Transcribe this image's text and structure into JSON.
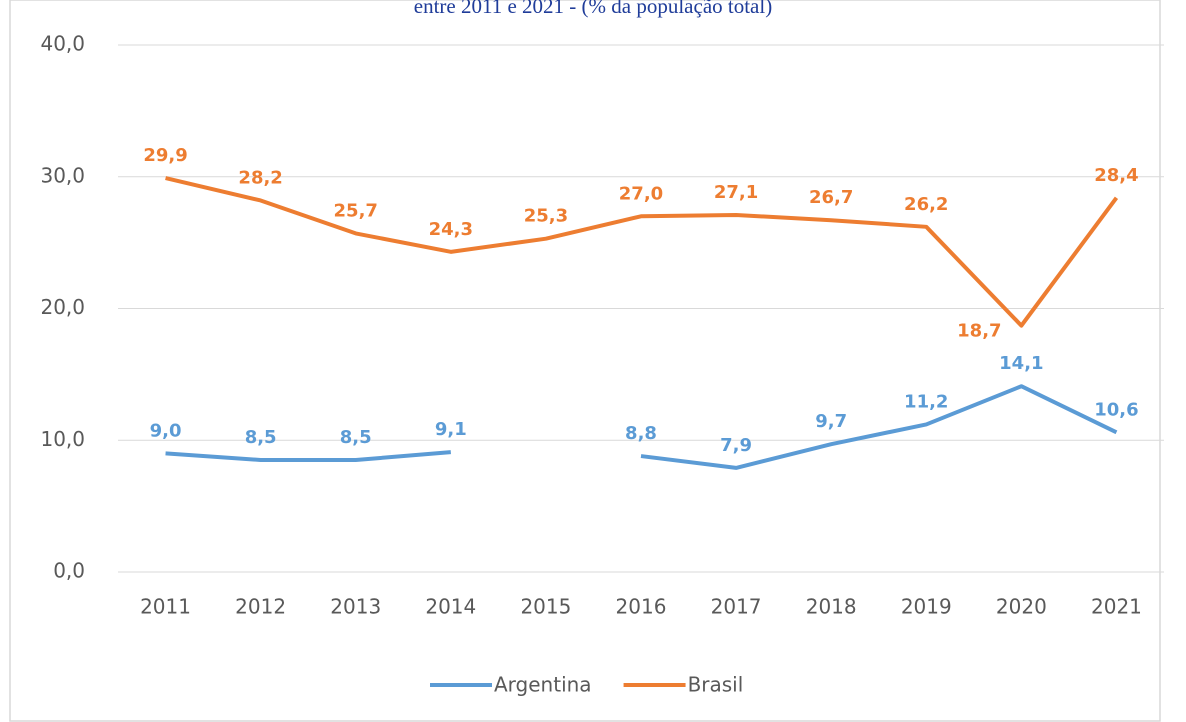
{
  "chart_data": {
    "type": "line",
    "title": "entre 2011 e 2021 - (% da população total)",
    "categories": [
      "2011",
      "2012",
      "2013",
      "2014",
      "2015",
      "2016",
      "2017",
      "2018",
      "2019",
      "2020",
      "2021"
    ],
    "series": [
      {
        "name": "Argentina",
        "color": "#5b9bd5",
        "values": [
          9.0,
          8.5,
          8.5,
          9.1,
          null,
          8.8,
          7.9,
          9.7,
          11.2,
          14.1,
          10.6
        ],
        "value_labels": [
          "9,0",
          "8,5",
          "8,5",
          "9,1",
          null,
          "8,8",
          "7,9",
          "9,7",
          "11,2",
          "14,1",
          "10,6"
        ]
      },
      {
        "name": "Brasil",
        "color": "#ed7d31",
        "values": [
          29.9,
          28.2,
          25.7,
          24.3,
          25.3,
          27.0,
          27.1,
          26.7,
          26.2,
          18.7,
          28.4
        ],
        "value_labels": [
          "29,9",
          "28,2",
          "25,7",
          "24,3",
          "25,3",
          "27,0",
          "27,1",
          "26,7",
          "26,2",
          "18,7",
          "28,4"
        ]
      }
    ],
    "ylim": [
      0,
      40
    ],
    "yticks": [
      {
        "value": 0,
        "label": "0,0"
      },
      {
        "value": 10,
        "label": "10,0"
      },
      {
        "value": 20,
        "label": "20,0"
      },
      {
        "value": 30,
        "label": "30,0"
      },
      {
        "value": 40,
        "label": "40,0"
      }
    ],
    "grid": true,
    "legend": "bottom"
  }
}
